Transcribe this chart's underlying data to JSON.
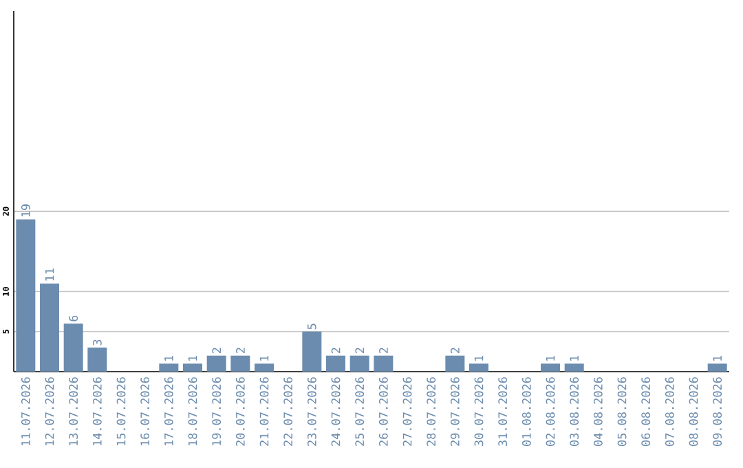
{
  "chart_data": {
    "type": "bar",
    "color": "#6b8cae",
    "categories": [
      "11.07.2026",
      "12.07.2026",
      "13.07.2026",
      "14.07.2026",
      "15.07.2026",
      "16.07.2026",
      "17.07.2026",
      "18.07.2026",
      "19.07.2026",
      "20.07.2026",
      "21.07.2026",
      "22.07.2026",
      "23.07.2026",
      "24.07.2026",
      "25.07.2026",
      "26.07.2026",
      "27.07.2026",
      "28.07.2026",
      "29.07.2026",
      "30.07.2026",
      "31.07.2026",
      "01.08.2026",
      "02.08.2026",
      "03.08.2026",
      "04.08.2026",
      "05.08.2026",
      "06.08.2026",
      "07.08.2026",
      "08.08.2026",
      "09.08.2026"
    ],
    "values": [
      19,
      11,
      6,
      3,
      0,
      0,
      1,
      1,
      2,
      2,
      1,
      0,
      5,
      2,
      2,
      2,
      0,
      0,
      2,
      1,
      0,
      0,
      1,
      1,
      0,
      0,
      0,
      0,
      0,
      1
    ],
    "value_labels": [
      "19",
      "11",
      "6",
      "3",
      null,
      null,
      "1",
      "1",
      "2",
      "2",
      "1",
      null,
      "5",
      "2",
      "2",
      "2",
      null,
      null,
      "2",
      "1",
      null,
      null,
      "1",
      "1",
      null,
      null,
      null,
      null,
      null,
      "1"
    ],
    "ylim": [
      0,
      45
    ],
    "yticks": [
      5,
      10,
      20
    ],
    "grid": "y"
  }
}
